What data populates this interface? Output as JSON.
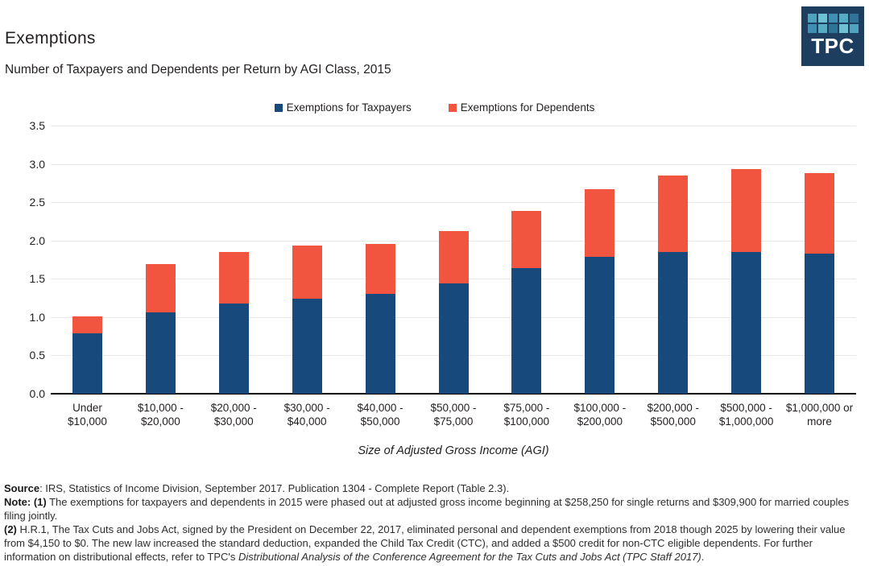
{
  "header": {
    "title": "Exemptions",
    "subtitle": "Number of Taxpayers and Dependents per Return by AGI Class, 2015",
    "logo_text": "TPC"
  },
  "colors": {
    "taxpayers_blue": "#17497C",
    "dependents_orange": "#F1553F",
    "gridline": "#E8E8E8",
    "axis_line": "#000000",
    "logo_background": "#1E3E60",
    "logo_square_colors": [
      "#4FA3BC",
      "#6FC0D2",
      "#3E8FB4",
      "#57ABC2",
      "#2F7397",
      "#3E8FB4",
      "#57ABC2",
      "#2F7397",
      "#6FC0D2",
      "#4FA3BC"
    ]
  },
  "chart_data": {
    "type": "bar",
    "stacked": true,
    "title": "Exemptions",
    "subtitle": "Number of Taxpayers and Dependents per Return by AGI Class, 2015",
    "xlabel": "Size of Adjusted Gross Income (AGI)",
    "ylabel": "",
    "ylim": [
      0,
      3.5
    ],
    "ytick_step": 0.5,
    "ytick_labels": [
      "0.0",
      "0.5",
      "1.0",
      "1.5",
      "2.0",
      "2.5",
      "3.0",
      "3.5"
    ],
    "grid": true,
    "legend_position": "top-center",
    "categories": [
      "Under\n$10,000",
      "$10,000 -\n$20,000",
      "$20,000 -\n$30,000",
      "$30,000 -\n$40,000",
      "$40,000 -\n$50,000",
      "$50,000 -\n$75,000",
      "$75,000 -\n$100,000",
      "$100,000 -\n$200,000",
      "$200,000 -\n$500,000",
      "$500,000 -\n$1,000,000",
      "$1,000,000 or\nmore"
    ],
    "series": [
      {
        "name": "Exemptions for Taxpayers",
        "color": "#17497C",
        "values": [
          0.79,
          1.06,
          1.18,
          1.24,
          1.3,
          1.44,
          1.64,
          1.79,
          1.85,
          1.85,
          1.83
        ]
      },
      {
        "name": "Exemptions for Dependents",
        "color": "#F1553F",
        "values": [
          0.22,
          0.63,
          0.67,
          0.69,
          0.66,
          0.68,
          0.75,
          0.88,
          1.0,
          1.08,
          1.05
        ]
      }
    ],
    "stack_totals": [
      1.01,
      1.69,
      1.85,
      1.93,
      1.96,
      2.12,
      2.39,
      2.67,
      2.85,
      2.93,
      2.88
    ]
  },
  "footnotes": {
    "source_label": "Source",
    "source_text": ": IRS, Statistics of Income Division, September 2017. Publication 1304 - Complete Report (Table 2.3).",
    "note1_label": "Note: (1)",
    "note1_text": " The exemptions for taxpayers and dependents in 2015 were phased out at adjusted gross income beginning at $258,250 for single returns and $309,900 for married couples filing jointly.",
    "note2_label": "(2)",
    "note2_text": " H.R.1, The Tax Cuts and Jobs Act, signed by the President on December 22, 2017, eliminated personal and dependent exemptions from 2018 though 2025 by lowering their value from $4,150 to $0. The new law increased the standard deduction, expanded the Child Tax Credit (CTC), and added a $500 credit for non-CTC eligible dependents. For further information on distributional effects, refer to TPC's ",
    "note2_italic": "Distributional Analysis of the Conference Agreement for the Tax Cuts and Jobs Act (TPC Staff 2017)",
    "note2_end": "."
  }
}
